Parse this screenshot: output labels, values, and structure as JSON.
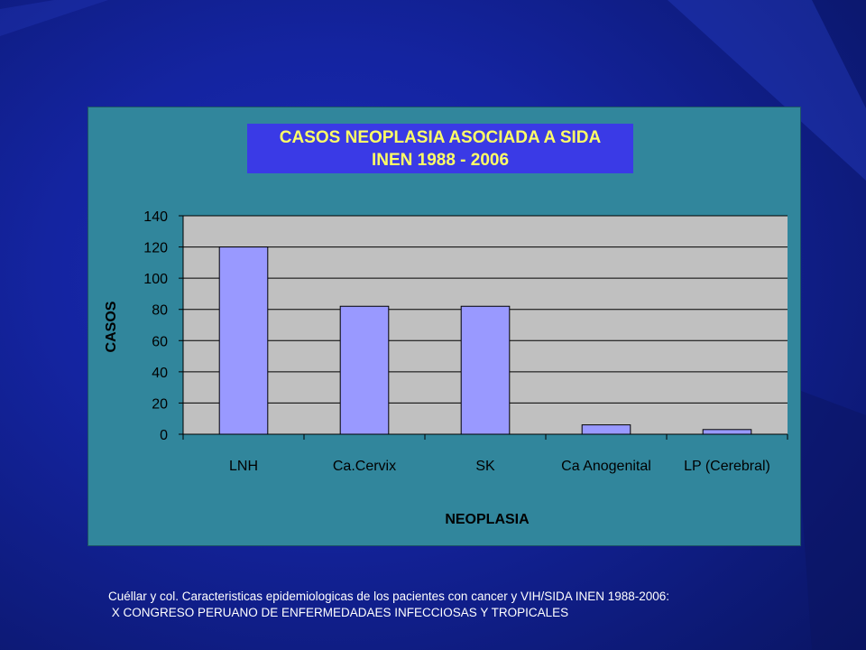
{
  "chart_data": {
    "type": "bar",
    "title": "CASOS NEOPLASIA ASOCIADA A SIDA",
    "subtitle": "INEN 1988 - 2006",
    "xlabel": "NEOPLASIA",
    "ylabel": "CASOS",
    "categories": [
      "LNH",
      "Ca.Cervix",
      "SK",
      "Ca Anogenital",
      "LP (Cerebral)"
    ],
    "values": [
      120,
      82,
      82,
      6,
      3
    ],
    "ylim": [
      0,
      140
    ],
    "yticks": [
      "0",
      "20",
      "40",
      "60",
      "80",
      "100",
      "120",
      "140"
    ],
    "grid": true,
    "legend": "none",
    "colors": {
      "bar": "#9999ff",
      "plot_bg": "#c0c0c0",
      "panel_bg": "#31869c",
      "title_bg": "#3a3ae6",
      "title_text": "#ffff66"
    }
  },
  "footnote": {
    "line1": "Cuéllar y col. Caracteristicas epidemiologicas de los pacientes con cancer y VIH/SIDA INEN 1988-2006:",
    "line2": " X CONGRESO PERUANO DE ENFERMEDADAES INFECCIOSAS Y TROPICALES"
  }
}
